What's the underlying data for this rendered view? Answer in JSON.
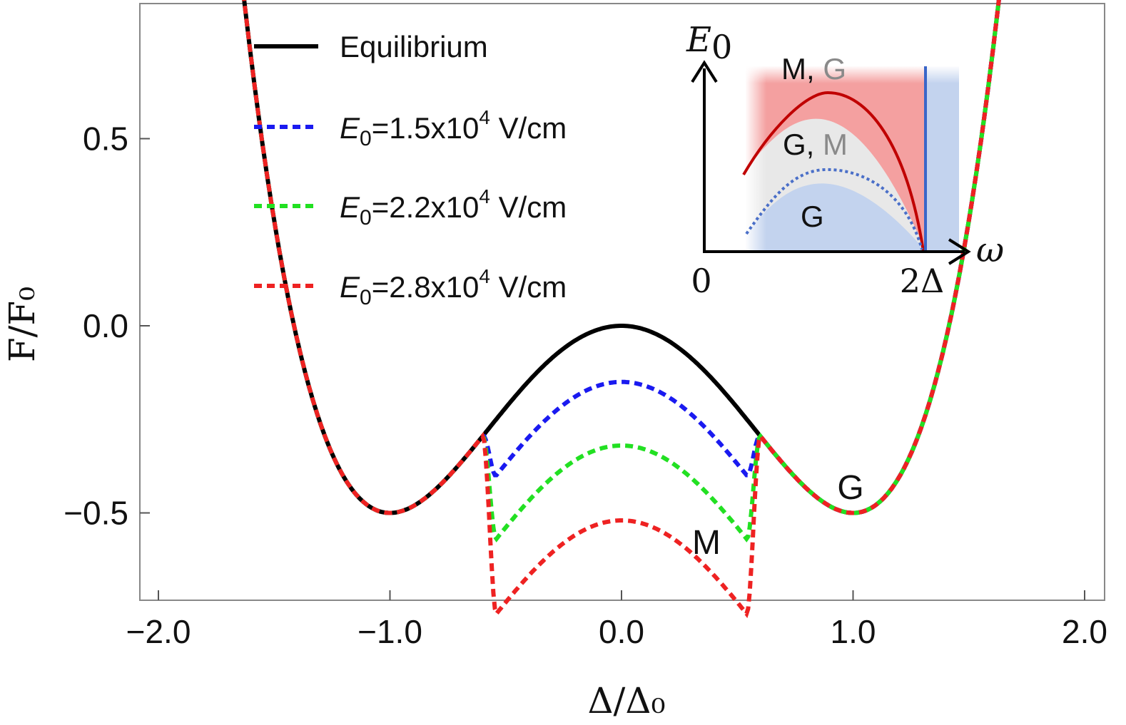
{
  "chart_data": {
    "type": "line",
    "title": "",
    "xlabel": "Δ/Δ₀",
    "ylabel": "F/F₀",
    "xlim": [
      -2.0,
      2.0
    ],
    "ylim": [
      -0.7,
      0.85
    ],
    "x_ticks": [
      "−2.0",
      "−1.0",
      "0.0",
      "1.0",
      "2.0"
    ],
    "y_ticks": [
      "0.5",
      "0.0",
      "−0.5"
    ],
    "legend_position": "top-left",
    "series": [
      {
        "name": "Equilibrium",
        "color": "#000000",
        "style": "solid",
        "depth": 0.0
      },
      {
        "name_prefix": "E",
        "name_sub": "0",
        "name_mid": "=1.5x10",
        "name_exp": "4",
        "name_unit": " V/cm",
        "color": "#1a1af0",
        "style": "dashed",
        "depth": 0.15
      },
      {
        "name_prefix": "E",
        "name_sub": "0",
        "name_mid": "=2.2x10",
        "name_exp": "4",
        "name_unit": " V/cm",
        "color": "#22e022",
        "style": "dashed",
        "depth": 0.32
      },
      {
        "name_prefix": "E",
        "name_sub": "0",
        "name_mid": "=2.8x10",
        "name_exp": "4",
        "name_unit": " V/cm",
        "color": "#ee2222",
        "style": "dashed",
        "depth": 0.52
      }
    ],
    "model": "F = Δ^4/2 − Δ^2; window |Δ| < 0.6 lowered by depth",
    "annotations": [
      {
        "text": "G",
        "x": 1.0,
        "y": -0.43
      },
      {
        "text": "M",
        "x": 0.35,
        "y": -0.58
      }
    ]
  },
  "inset": {
    "y_axis_label": "E",
    "y_axis_sub": "0",
    "x_axis_label": "ω",
    "origin_label": "0",
    "x_end_label": "2Δ",
    "regions": [
      {
        "first": "M, ",
        "second": "G"
      },
      {
        "first": "G, ",
        "second": "M"
      },
      {
        "first": "G",
        "second": ""
      }
    ],
    "colors": {
      "red_region": "#f4a0a0",
      "gray_region": "#e8e8e8",
      "blue_region": "#c3d3ee",
      "solid_curve": "#c00000",
      "dotted_curve": "#4a6fc8",
      "vline": "#3a66c8"
    }
  }
}
